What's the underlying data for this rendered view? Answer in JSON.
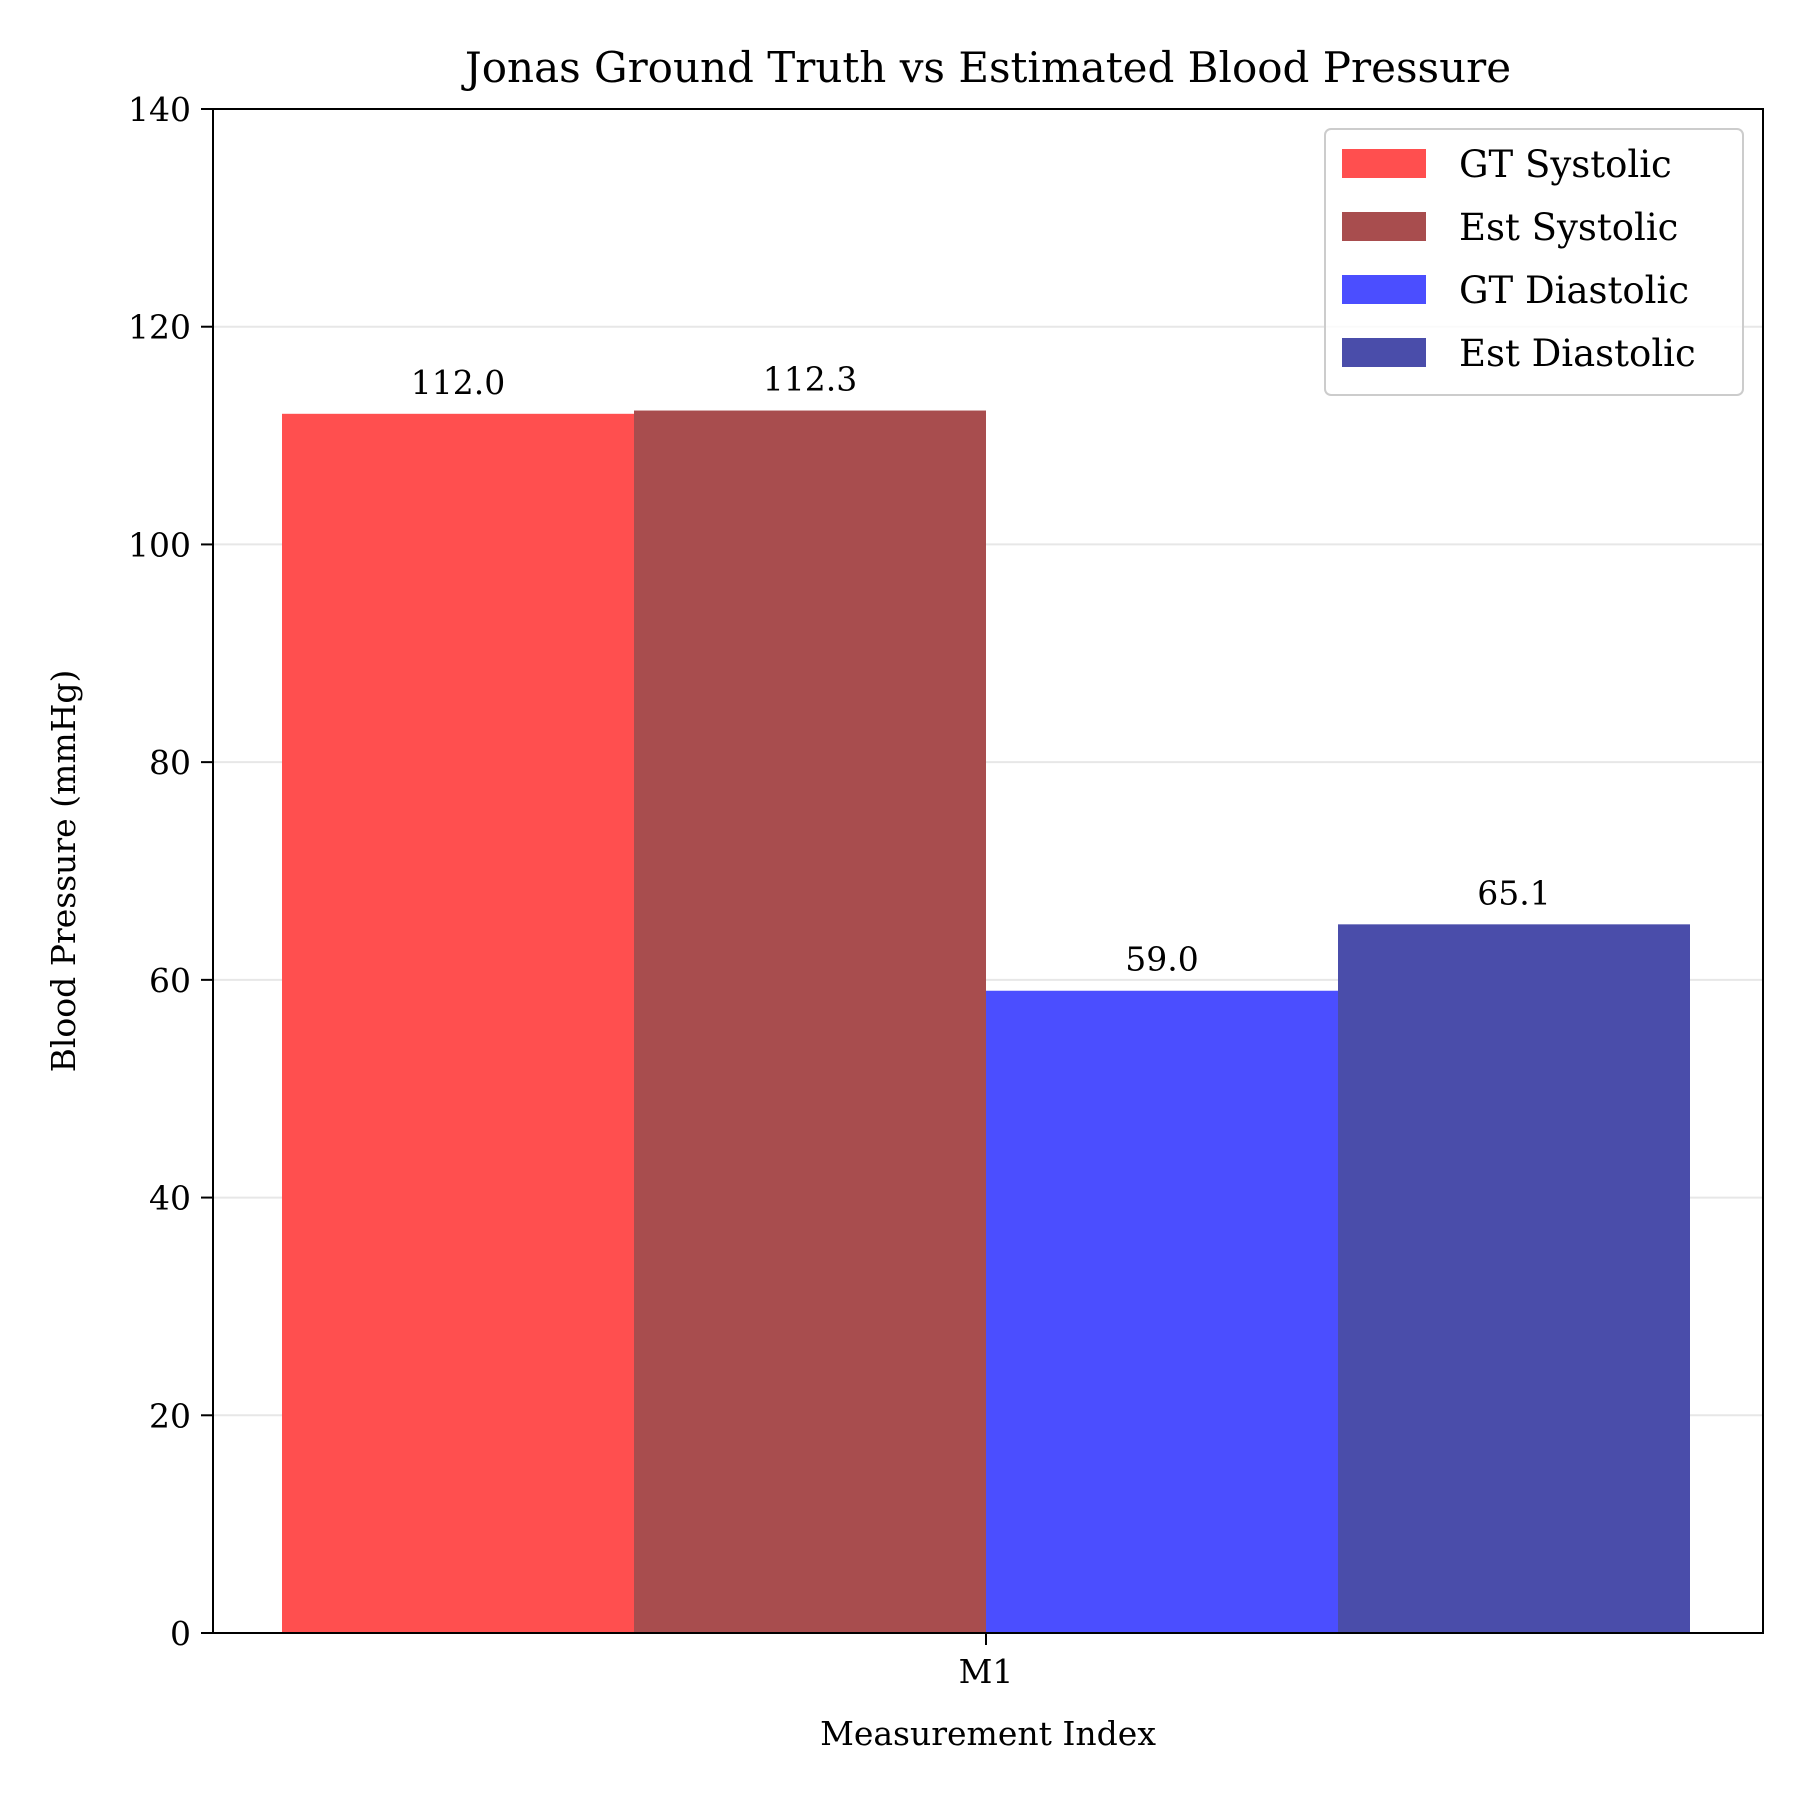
{
  "chart_data": {
    "type": "bar",
    "title": "Jonas Ground Truth vs Estimated Blood Pressure",
    "xlabel": "Measurement Index",
    "ylabel": "Blood Pressure (mmHg)",
    "categories": [
      "M1"
    ],
    "ylim": [
      0,
      140
    ],
    "yticks": [
      0,
      20,
      40,
      60,
      80,
      100,
      120,
      140
    ],
    "grid": "horizontal",
    "legend_position": "top-right",
    "series": [
      {
        "name": "GT Systolic",
        "values": [
          112.0
        ],
        "label": "112.0",
        "color": "#ff4f4f"
      },
      {
        "name": "Est Systolic",
        "values": [
          112.3
        ],
        "label": "112.3",
        "color": "#a84d4e"
      },
      {
        "name": "GT Diastolic",
        "values": [
          59.0
        ],
        "label": "59.0",
        "color": "#4b4eff"
      },
      {
        "name": "Est Diastolic",
        "values": [
          65.1
        ],
        "label": "65.1",
        "color": "#4a4daa"
      }
    ]
  }
}
